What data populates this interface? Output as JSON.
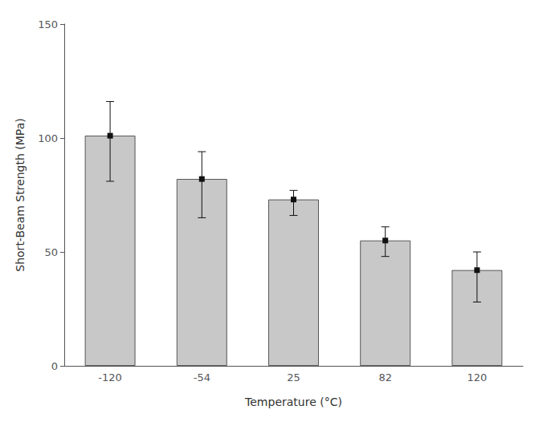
{
  "chart_data": {
    "type": "bar",
    "categories": [
      "-120",
      "-54",
      "25",
      "82",
      "120"
    ],
    "values": [
      101.0,
      82.0,
      73.0,
      55.0,
      42.0
    ],
    "errors_upper": [
      15.0,
      12.0,
      4.0,
      6.0,
      8.0
    ],
    "errors_lower": [
      20.0,
      17.0,
      7.0,
      7.0,
      14.0
    ],
    "color": "#c8c8c8",
    "xlabel": "Temperature (°C)",
    "ylabel": "Short-Beam Strength (MPa)",
    "ylim": [
      0,
      150
    ],
    "yticks": [
      0,
      50,
      100,
      150
    ],
    "grid": false
  }
}
